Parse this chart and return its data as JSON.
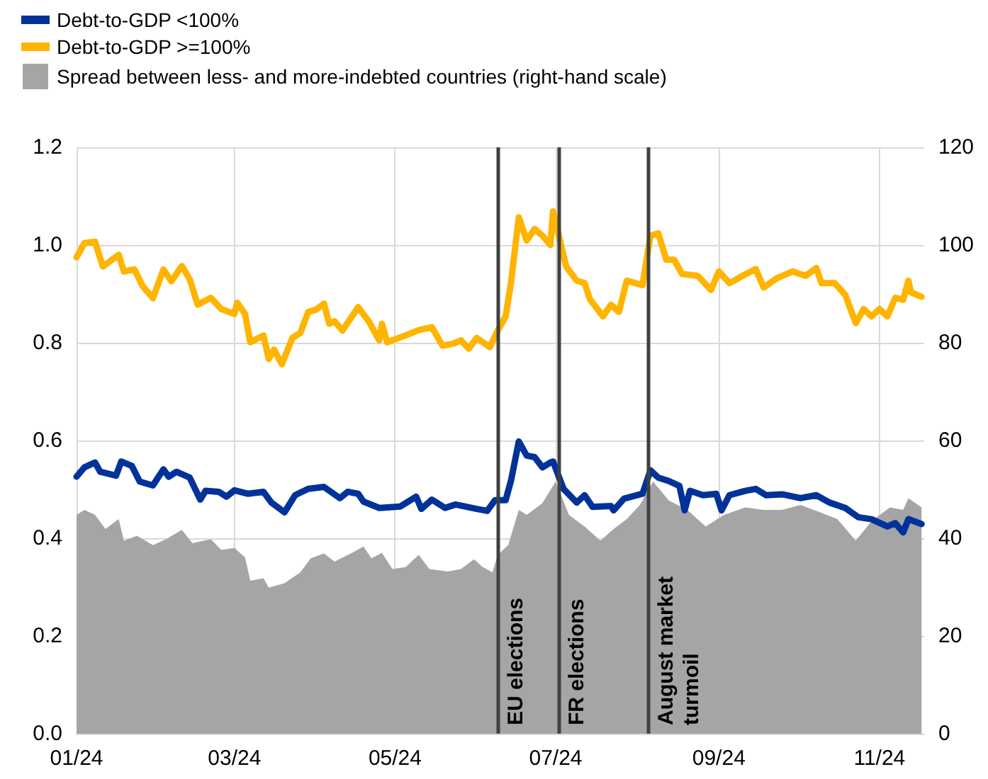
{
  "chart_data": {
    "type": "line",
    "legend": "top left",
    "grid": true,
    "marker": "none",
    "line_style": "solid",
    "xlim": [
      "2024-01-01",
      "2024-11-18"
    ],
    "xticks": [
      {
        "value": "2024-01-01",
        "label": "01/24"
      },
      {
        "value": "2024-03-01",
        "label": "03/24"
      },
      {
        "value": "2024-05-01",
        "label": "05/24"
      },
      {
        "value": "2024-07-01",
        "label": "07/24"
      },
      {
        "value": "2024-09-01",
        "label": "09/24"
      },
      {
        "value": "2024-11-01",
        "label": "11/24"
      }
    ],
    "ylim": [
      0,
      1.2
    ],
    "yticks": [
      {
        "value": 0,
        "label": "0.0"
      },
      {
        "value": 0.2,
        "label": "0.2"
      },
      {
        "value": 0.4,
        "label": "0.4"
      },
      {
        "value": 0.6,
        "label": "0.6"
      },
      {
        "value": 0.8,
        "label": "0.8"
      },
      {
        "value": 1,
        "label": "1.0"
      },
      {
        "value": 1.2,
        "label": "1.2"
      }
    ],
    "y2lim": [
      0,
      120
    ],
    "y2ticks": [
      0,
      20,
      40,
      60,
      80,
      100,
      120
    ],
    "ref_lines": [
      {
        "axis": "x",
        "value": "2024-06-09",
        "label": "EU elections",
        "color": "#404040"
      },
      {
        "axis": "x",
        "value": "2024-07-02",
        "label": "FR elections",
        "color": "#404040"
      },
      {
        "axis": "x",
        "value": "2024-08-05",
        "label": "August market turmoil",
        "color": "#404040"
      }
    ],
    "series": [
      {
        "name": "Spread between less- and more-indebted countries (right-hand scale)",
        "type": "area",
        "axis": "y2",
        "color": "#a5a5a5",
        "x": [
          "2024-01-01",
          "2024-01-04",
          "2024-01-08",
          "2024-01-12",
          "2024-01-17",
          "2024-01-19",
          "2024-01-24",
          "2024-01-30",
          "2024-02-04",
          "2024-02-10",
          "2024-02-14",
          "2024-02-21",
          "2024-02-25",
          "2024-03-01",
          "2024-03-05",
          "2024-03-07",
          "2024-03-12",
          "2024-03-14",
          "2024-03-20",
          "2024-03-26",
          "2024-03-30",
          "2024-04-04",
          "2024-04-08",
          "2024-04-15",
          "2024-04-19",
          "2024-04-22",
          "2024-04-26",
          "2024-04-30",
          "2024-05-05",
          "2024-05-10",
          "2024-05-14",
          "2024-05-21",
          "2024-05-26",
          "2024-05-31",
          "2024-06-03",
          "2024-06-07",
          "2024-06-09",
          "2024-06-13",
          "2024-06-17",
          "2024-06-20",
          "2024-06-26",
          "2024-07-01",
          "2024-07-06",
          "2024-07-12",
          "2024-07-18",
          "2024-07-23",
          "2024-07-28",
          "2024-08-02",
          "2024-08-07",
          "2024-08-13",
          "2024-08-20",
          "2024-08-27",
          "2024-09-03",
          "2024-09-11",
          "2024-09-18",
          "2024-09-25",
          "2024-10-02",
          "2024-10-09",
          "2024-10-16",
          "2024-10-23",
          "2024-10-29",
          "2024-11-05",
          "2024-11-10",
          "2024-11-12",
          "2024-11-17"
        ],
        "values": [
          44.8,
          45.8,
          44.8,
          41.9,
          43.9,
          39.5,
          40.5,
          38.6,
          39.8,
          41.7,
          39.0,
          39.8,
          37.6,
          38.0,
          36.1,
          31.3,
          31.8,
          29.9,
          30.8,
          33.0,
          35.9,
          36.9,
          35.2,
          37.1,
          38.3,
          35.9,
          37.0,
          33.7,
          34.1,
          36.6,
          33.7,
          33.2,
          33.7,
          35.7,
          34.2,
          33.0,
          36.6,
          38.6,
          45.8,
          44.8,
          47.2,
          51.6,
          44.8,
          42.4,
          39.5,
          41.9,
          43.9,
          46.8,
          51.6,
          47.7,
          45.8,
          42.4,
          44.8,
          46.3,
          45.8,
          45.8,
          46.8,
          45.4,
          43.9,
          39.5,
          43.5,
          46.3,
          45.8,
          48.2,
          46.3
        ]
      },
      {
        "name": "Debt-to-GDP <100%",
        "color": "#003299",
        "x": [
          "2024-01-01",
          "2024-01-04",
          "2024-01-08",
          "2024-01-10",
          "2024-01-16",
          "2024-01-18",
          "2024-01-22",
          "2024-01-25",
          "2024-01-30",
          "2024-02-03",
          "2024-02-05",
          "2024-02-08",
          "2024-02-13",
          "2024-02-17",
          "2024-02-19",
          "2024-02-24",
          "2024-02-27",
          "2024-03-01",
          "2024-03-06",
          "2024-03-12",
          "2024-03-15",
          "2024-03-20",
          "2024-03-24",
          "2024-03-29",
          "2024-04-04",
          "2024-04-10",
          "2024-04-13",
          "2024-04-17",
          "2024-04-19",
          "2024-04-25",
          "2024-05-03",
          "2024-05-09",
          "2024-05-11",
          "2024-05-15",
          "2024-05-20",
          "2024-05-24",
          "2024-06-01",
          "2024-06-05",
          "2024-06-08",
          "2024-06-12",
          "2024-06-14",
          "2024-06-17",
          "2024-06-20",
          "2024-06-23",
          "2024-06-26",
          "2024-06-29",
          "2024-06-30",
          "2024-07-04",
          "2024-07-09",
          "2024-07-12",
          "2024-07-15",
          "2024-07-22",
          "2024-07-23",
          "2024-07-27",
          "2024-08-03",
          "2024-08-06",
          "2024-08-09",
          "2024-08-13",
          "2024-08-17",
          "2024-08-19",
          "2024-08-21",
          "2024-08-26",
          "2024-08-31",
          "2024-09-02",
          "2024-09-05",
          "2024-09-11",
          "2024-09-15",
          "2024-09-19",
          "2024-09-25",
          "2024-10-02",
          "2024-10-08",
          "2024-10-13",
          "2024-10-19",
          "2024-10-24",
          "2024-10-29",
          "2024-11-04",
          "2024-11-07",
          "2024-11-10",
          "2024-11-12",
          "2024-11-17"
        ],
        "values": [
          0.526,
          0.545,
          0.555,
          0.536,
          0.528,
          0.557,
          0.548,
          0.516,
          0.508,
          0.541,
          0.526,
          0.536,
          0.524,
          0.479,
          0.497,
          0.495,
          0.485,
          0.498,
          0.491,
          0.495,
          0.473,
          0.453,
          0.488,
          0.501,
          0.505,
          0.482,
          0.495,
          0.491,
          0.475,
          0.462,
          0.465,
          0.485,
          0.46,
          0.479,
          0.462,
          0.469,
          0.46,
          0.456,
          0.478,
          0.478,
          0.517,
          0.598,
          0.569,
          0.566,
          0.545,
          0.555,
          0.557,
          0.501,
          0.473,
          0.488,
          0.464,
          0.466,
          0.457,
          0.481,
          0.491,
          0.539,
          0.524,
          0.517,
          0.507,
          0.457,
          0.497,
          0.488,
          0.491,
          0.457,
          0.488,
          0.497,
          0.501,
          0.488,
          0.49,
          0.482,
          0.488,
          0.473,
          0.462,
          0.443,
          0.439,
          0.424,
          0.431,
          0.412,
          0.439,
          0.429
        ]
      },
      {
        "name": "Debt-to-GDP >=100%",
        "color": "#ffb400",
        "x": [
          "2024-01-01",
          "2024-01-04",
          "2024-01-08",
          "2024-01-11",
          "2024-01-17",
          "2024-01-19",
          "2024-01-23",
          "2024-01-26",
          "2024-01-30",
          "2024-02-03",
          "2024-02-06",
          "2024-02-10",
          "2024-02-13",
          "2024-02-16",
          "2024-02-21",
          "2024-02-25",
          "2024-03-01",
          "2024-03-02",
          "2024-03-05",
          "2024-03-07",
          "2024-03-12",
          "2024-03-14",
          "2024-03-16",
          "2024-03-19",
          "2024-03-23",
          "2024-03-26",
          "2024-03-29",
          "2024-04-01",
          "2024-04-04",
          "2024-04-06",
          "2024-04-08",
          "2024-04-11",
          "2024-04-17",
          "2024-04-21",
          "2024-04-25",
          "2024-04-26",
          "2024-04-28",
          "2024-05-05",
          "2024-05-10",
          "2024-05-15",
          "2024-05-19",
          "2024-05-23",
          "2024-05-26",
          "2024-05-29",
          "2024-06-01",
          "2024-06-06",
          "2024-06-09",
          "2024-06-12",
          "2024-06-14",
          "2024-06-17",
          "2024-06-20",
          "2024-06-23",
          "2024-06-26",
          "2024-06-29",
          "2024-06-30",
          "2024-07-05",
          "2024-07-09",
          "2024-07-12",
          "2024-07-14",
          "2024-07-19",
          "2024-07-22",
          "2024-07-25",
          "2024-07-28",
          "2024-08-03",
          "2024-08-06",
          "2024-08-09",
          "2024-08-12",
          "2024-08-15",
          "2024-08-18",
          "2024-08-24",
          "2024-08-29",
          "2024-09-01",
          "2024-09-05",
          "2024-09-10",
          "2024-09-15",
          "2024-09-18",
          "2024-09-23",
          "2024-09-29",
          "2024-10-04",
          "2024-10-08",
          "2024-10-10",
          "2024-10-15",
          "2024-10-19",
          "2024-10-23",
          "2024-10-26",
          "2024-10-29",
          "2024-11-01",
          "2024-11-04",
          "2024-11-07",
          "2024-11-10",
          "2024-11-12",
          "2024-11-13",
          "2024-11-17"
        ],
        "values": [
          0.975,
          1.004,
          1.007,
          0.956,
          0.98,
          0.946,
          0.95,
          0.917,
          0.891,
          0.95,
          0.926,
          0.957,
          0.93,
          0.878,
          0.892,
          0.869,
          0.859,
          0.882,
          0.859,
          0.801,
          0.815,
          0.767,
          0.786,
          0.756,
          0.81,
          0.82,
          0.863,
          0.868,
          0.88,
          0.839,
          0.844,
          0.825,
          0.873,
          0.844,
          0.805,
          0.839,
          0.801,
          0.815,
          0.826,
          0.832,
          0.794,
          0.798,
          0.805,
          0.788,
          0.81,
          0.791,
          0.825,
          0.854,
          0.922,
          1.057,
          1.009,
          1.033,
          1.019,
          1.0,
          1.069,
          0.956,
          0.927,
          0.922,
          0.889,
          0.854,
          0.878,
          0.863,
          0.927,
          0.918,
          1.019,
          1.024,
          0.97,
          0.97,
          0.941,
          0.937,
          0.908,
          0.946,
          0.922,
          0.937,
          0.951,
          0.913,
          0.932,
          0.946,
          0.937,
          0.953,
          0.922,
          0.922,
          0.898,
          0.84,
          0.869,
          0.854,
          0.869,
          0.854,
          0.892,
          0.888,
          0.927,
          0.903,
          0.894
        ]
      }
    ]
  }
}
